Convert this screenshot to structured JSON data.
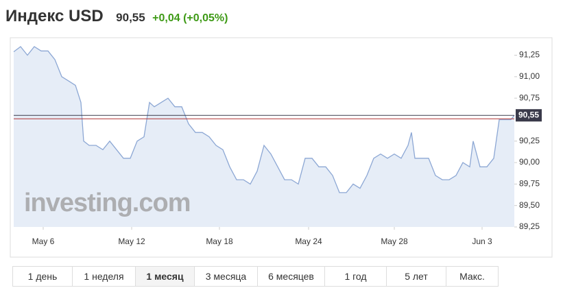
{
  "chart_data": {
    "type": "line",
    "title": "Индекс USD",
    "price_label": "90,55",
    "change": "+0,04 (+0,05%)",
    "watermark": "investing.com",
    "x": [
      0,
      1,
      2,
      3,
      4,
      5,
      6,
      7,
      8,
      9,
      9.8,
      10.2,
      11,
      12,
      13,
      14,
      15,
      16,
      17,
      18,
      19,
      19.8,
      20.5,
      21.5,
      22.5,
      23.5,
      24.5,
      25.5,
      26.5,
      27.5,
      28.5,
      29.5,
      30.5,
      31.5,
      32.5,
      33.5,
      34.5,
      35.5,
      36.5,
      37.5,
      38.5,
      39.5,
      40.5,
      41.5,
      42.5,
      43.5,
      44.5,
      45.5,
      46.5,
      47.5,
      48.5,
      49.5,
      50.5,
      51.5,
      52.5,
      53.5,
      54.5,
      55.5,
      56.5,
      57.5,
      58,
      58.5,
      59.5,
      60.5,
      61.5,
      62.5,
      63.5,
      64.5,
      65.5,
      66.5,
      67,
      68,
      69,
      70,
      70.8,
      71.5,
      72.5,
      73
    ],
    "series": [
      {
        "name": "Индекс USD",
        "color": "#8ca7d4",
        "values": [
          91.29,
          91.35,
          91.25,
          91.35,
          91.3,
          91.3,
          91.2,
          91.0,
          90.95,
          90.9,
          90.7,
          90.25,
          90.2,
          90.2,
          90.15,
          90.25,
          90.15,
          90.05,
          90.05,
          90.25,
          90.3,
          90.7,
          90.65,
          90.7,
          90.75,
          90.65,
          90.65,
          90.45,
          90.35,
          90.35,
          90.3,
          90.2,
          90.15,
          89.95,
          89.8,
          89.8,
          89.75,
          89.9,
          90.2,
          90.1,
          89.95,
          89.8,
          89.8,
          89.75,
          90.05,
          90.05,
          89.95,
          89.95,
          89.85,
          89.65,
          89.65,
          89.75,
          89.7,
          89.85,
          90.05,
          90.1,
          90.05,
          90.1,
          90.05,
          90.2,
          90.35,
          90.05,
          90.05,
          90.05,
          89.85,
          89.8,
          89.8,
          89.85,
          90.0,
          89.95,
          90.25,
          89.95,
          89.95,
          90.05,
          90.5,
          90.5,
          90.5,
          90.55
        ]
      }
    ],
    "current_price": {
      "value": 90.55,
      "label": "90,55",
      "color": "#3a3a4a"
    },
    "previous_close": {
      "value": 90.51,
      "color": "#b03030"
    },
    "xlim": [
      0,
      73
    ],
    "xticks": [
      {
        "value": 4.3,
        "label": "May 6"
      },
      {
        "value": 17.2,
        "label": "May 12"
      },
      {
        "value": 30,
        "label": "May 18"
      },
      {
        "value": 43,
        "label": "May 24"
      },
      {
        "value": 55.5,
        "label": "May 28"
      },
      {
        "value": 68.3,
        "label": "Jun 3"
      }
    ],
    "ylim": [
      89.25,
      91.43
    ],
    "yticks": [
      {
        "value": 89.25,
        "label": "89,25"
      },
      {
        "value": 89.5,
        "label": "89,50"
      },
      {
        "value": 89.75,
        "label": "89,75"
      },
      {
        "value": 90,
        "label": "90,00"
      },
      {
        "value": 90.25,
        "label": "90,25"
      },
      {
        "value": 90.75,
        "label": "90,75"
      },
      {
        "value": 91,
        "label": "91,00"
      },
      {
        "value": 91.25,
        "label": "91,25"
      }
    ],
    "ranges": [
      "1 день",
      "1 неделя",
      "1 месяц",
      "3 месяца",
      "6 месяцев",
      "1 год",
      "5 лет",
      "Макс."
    ],
    "active_range": "1 месяц"
  }
}
